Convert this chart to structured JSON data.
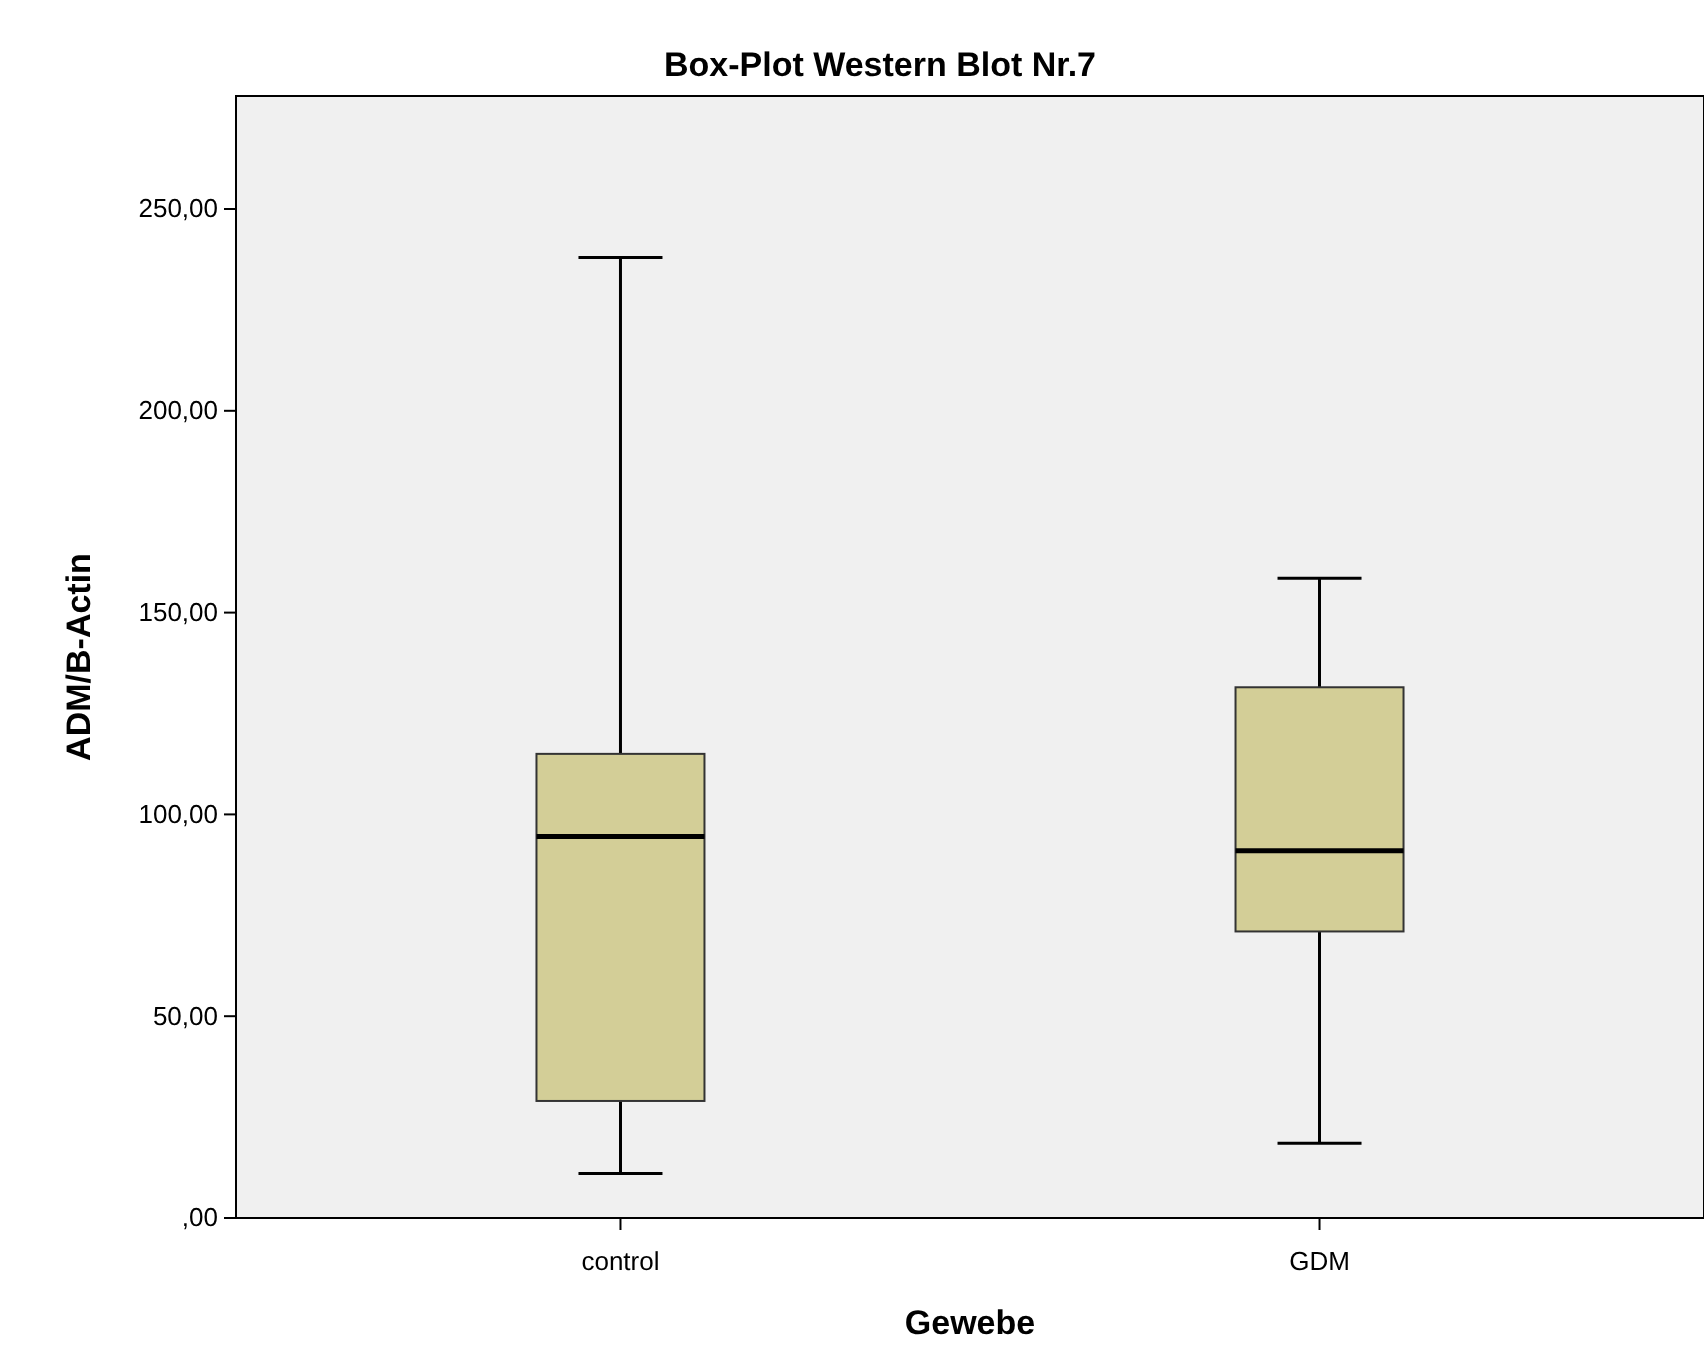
{
  "chart_data": {
    "type": "box",
    "title": "Box-Plot Western Blot Nr.7",
    "xlabel": "Gewebe",
    "ylabel": "ADM/B-Actin",
    "categories": [
      "control",
      "GDM"
    ],
    "boxes": [
      {
        "low": 11,
        "q1": 29,
        "median": 94.5,
        "q3": 115,
        "high": 238
      },
      {
        "low": 18.5,
        "q1": 71,
        "median": 91,
        "q3": 131.5,
        "high": 158.5
      }
    ],
    "color": "#d3ce97",
    "ylim": [
      0,
      278
    ],
    "yticks": [
      {
        "value": 0,
        "label": ",00"
      },
      {
        "value": 50,
        "label": "50,00"
      },
      {
        "value": 100,
        "label": "100,00"
      },
      {
        "value": 150,
        "label": "150,00"
      },
      {
        "value": 200,
        "label": "200,00"
      },
      {
        "value": 250,
        "label": "250,00"
      }
    ],
    "grid": false
  }
}
